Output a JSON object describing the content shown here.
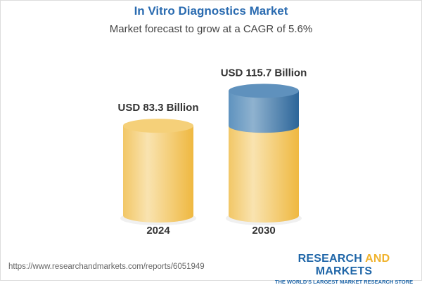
{
  "title": "In Vitro Diagnostics Market",
  "subtitle": "Market forecast to grow at a CAGR of 5.6%",
  "chart_data": {
    "type": "bar",
    "style": "3d-cylinder",
    "categories": [
      "2024",
      "2030"
    ],
    "values": [
      83.3,
      115.7
    ],
    "data_labels": [
      "USD 83.3 Billion",
      "USD 115.7 Billion"
    ],
    "growth_highlight": {
      "from": 83.3,
      "to": 115.7,
      "color": "#3f7bb0"
    },
    "bar_color": "#f3c765",
    "grid": false
  },
  "footer": {
    "url": "https://www.researchandmarkets.com/reports/6051949",
    "logo_main_1": "RESEARCH ",
    "logo_main_and": "AND",
    "logo_main_2": " MARKETS",
    "logo_tagline": "THE WORLD'S LARGEST MARKET RESEARCH STORE"
  }
}
